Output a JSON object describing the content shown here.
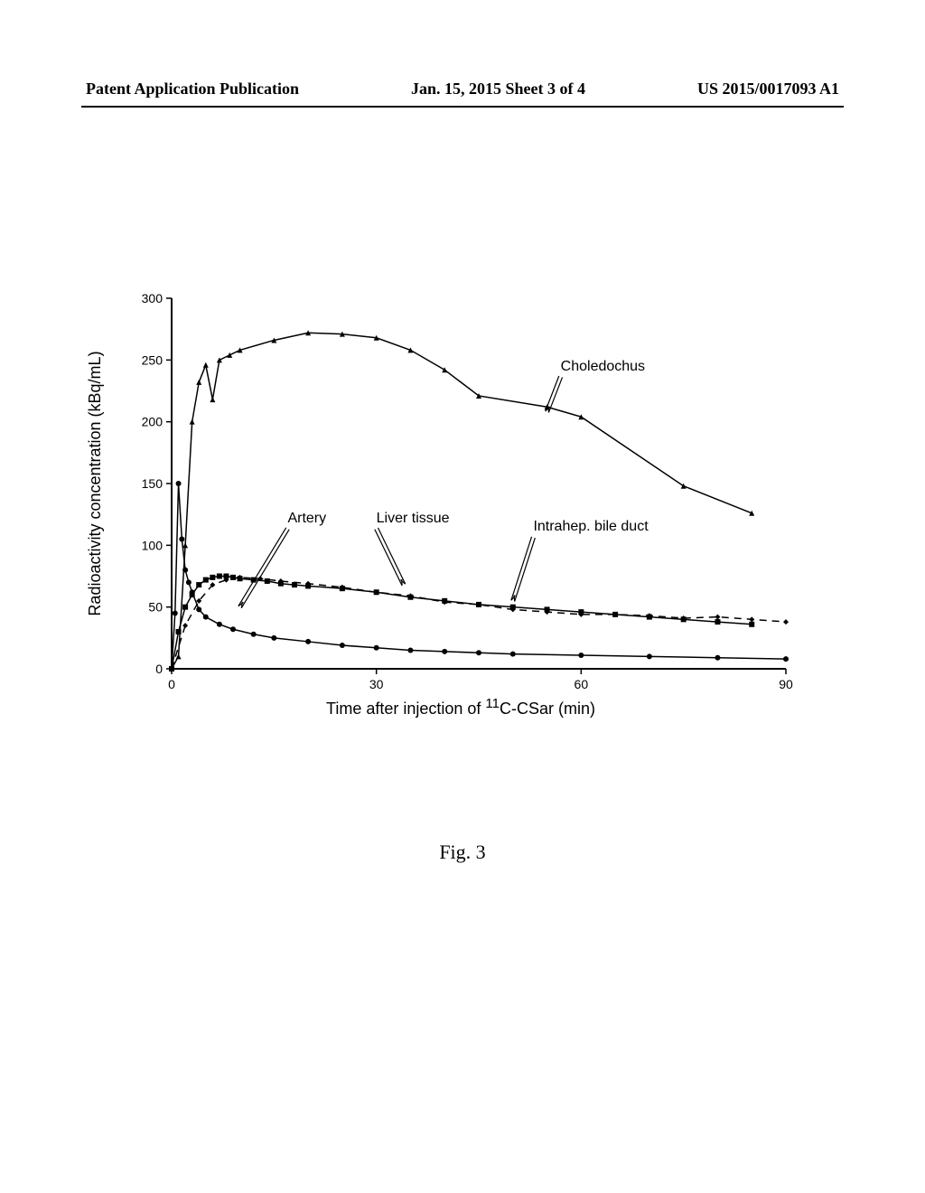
{
  "header": {
    "left": "Patent Application Publication",
    "center": "Jan. 15, 2015  Sheet 3 of 4",
    "right": "US 2015/0017093 A1"
  },
  "figure_caption": "Fig. 3",
  "chart": {
    "type": "line",
    "xlabel_prefix": "Time after injection of ",
    "xlabel_sup": "11",
    "xlabel_suffix": "C-CSar (min)",
    "ylabel": "Radioactivity concentration (kBq/mL)",
    "xlim": [
      0,
      90
    ],
    "ylim": [
      0,
      300
    ],
    "xticks": [
      0,
      30,
      60,
      90
    ],
    "yticks": [
      0,
      50,
      100,
      150,
      200,
      250,
      300
    ],
    "background_color": "#ffffff",
    "axis_color": "#000000",
    "label_fontsize": 18,
    "tick_fontsize": 14,
    "series": {
      "choledochus": {
        "label": "Choledochus",
        "color": "#000000",
        "marker": "triangle",
        "line_style": "solid",
        "line_width": 1.5,
        "data": [
          [
            0,
            0
          ],
          [
            1,
            10
          ],
          [
            2,
            100
          ],
          [
            3,
            200
          ],
          [
            4,
            232
          ],
          [
            5,
            246
          ],
          [
            6,
            218
          ],
          [
            7,
            250
          ],
          [
            8.5,
            254
          ],
          [
            10,
            258
          ],
          [
            15,
            266
          ],
          [
            20,
            272
          ],
          [
            25,
            271
          ],
          [
            30,
            268
          ],
          [
            35,
            258
          ],
          [
            40,
            242
          ],
          [
            45,
            221
          ],
          [
            55,
            212
          ],
          [
            60,
            204
          ],
          [
            75,
            148
          ],
          [
            85,
            126
          ]
        ],
        "annotation": {
          "x": 57,
          "y": 238,
          "arrow_to_x": 55,
          "arrow_to_y": 208
        }
      },
      "artery": {
        "label": "Artery",
        "color": "#000000",
        "marker": "circle",
        "line_style": "solid",
        "line_width": 1.5,
        "data": [
          [
            0,
            0
          ],
          [
            0.5,
            45
          ],
          [
            1,
            150
          ],
          [
            1.5,
            105
          ],
          [
            2,
            80
          ],
          [
            2.5,
            70
          ],
          [
            3,
            62
          ],
          [
            4,
            48
          ],
          [
            5,
            42
          ],
          [
            7,
            36
          ],
          [
            9,
            32
          ],
          [
            12,
            28
          ],
          [
            15,
            25
          ],
          [
            20,
            22
          ],
          [
            25,
            19
          ],
          [
            30,
            17
          ],
          [
            35,
            15
          ],
          [
            40,
            14
          ],
          [
            45,
            13
          ],
          [
            50,
            12
          ],
          [
            60,
            11
          ],
          [
            70,
            10
          ],
          [
            80,
            9
          ],
          [
            90,
            8
          ]
        ],
        "annotation": {
          "x": 17,
          "y": 115,
          "arrow_to_x": 10,
          "arrow_to_y": 50
        }
      },
      "liver_tissue": {
        "label": "Liver tissue",
        "color": "#000000",
        "marker": "square",
        "line_style": "solid",
        "line_width": 1.5,
        "data": [
          [
            0,
            0
          ],
          [
            1,
            30
          ],
          [
            2,
            50
          ],
          [
            3,
            60
          ],
          [
            4,
            68
          ],
          [
            5,
            72
          ],
          [
            6,
            74
          ],
          [
            7,
            75
          ],
          [
            8,
            75
          ],
          [
            9,
            74
          ],
          [
            10,
            73
          ],
          [
            12,
            72
          ],
          [
            14,
            71
          ],
          [
            16,
            69
          ],
          [
            18,
            68
          ],
          [
            20,
            67
          ],
          [
            25,
            65
          ],
          [
            30,
            62
          ],
          [
            35,
            58
          ],
          [
            40,
            55
          ],
          [
            45,
            52
          ],
          [
            50,
            50
          ],
          [
            55,
            48
          ],
          [
            60,
            46
          ],
          [
            65,
            44
          ],
          [
            70,
            42
          ],
          [
            75,
            40
          ],
          [
            80,
            38
          ],
          [
            85,
            36
          ]
        ],
        "annotation": {
          "x": 30,
          "y": 115,
          "arrow_to_x": 34,
          "arrow_to_y": 68
        }
      },
      "intrahep_bile_duct": {
        "label": "Intrahep. bile duct",
        "color": "#000000",
        "marker": "diamond",
        "line_style": "dashed",
        "line_width": 1.5,
        "data": [
          [
            0,
            0
          ],
          [
            2,
            35
          ],
          [
            4,
            55
          ],
          [
            6,
            68
          ],
          [
            8,
            72
          ],
          [
            10,
            74
          ],
          [
            13,
            73
          ],
          [
            16,
            71
          ],
          [
            20,
            69
          ],
          [
            25,
            66
          ],
          [
            30,
            62
          ],
          [
            35,
            59
          ],
          [
            40,
            54
          ],
          [
            45,
            52
          ],
          [
            50,
            48
          ],
          [
            55,
            46
          ],
          [
            60,
            44
          ],
          [
            65,
            44
          ],
          [
            70,
            43
          ],
          [
            75,
            41
          ],
          [
            80,
            42
          ],
          [
            85,
            40
          ],
          [
            90,
            38
          ]
        ],
        "annotation": {
          "x": 53,
          "y": 108,
          "arrow_to_x": 50,
          "arrow_to_y": 55
        }
      }
    }
  }
}
